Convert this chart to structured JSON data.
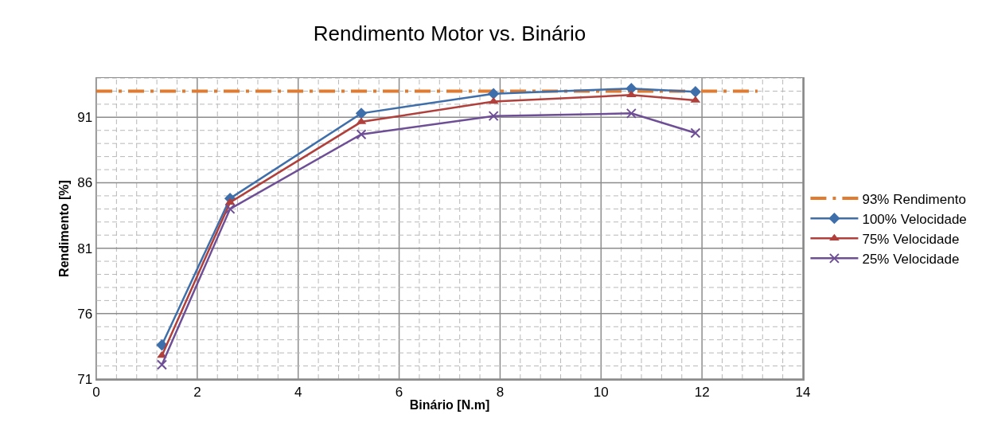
{
  "chart_data": {
    "type": "line",
    "title": "Rendimento Motor vs. Binário",
    "xlabel": "Binário [N.m]",
    "ylabel": "Rendimento [%]",
    "xlim": [
      0,
      14
    ],
    "ylim": [
      71,
      94
    ],
    "xticks": [
      0,
      {
        "value": 0.4,
        "label": null
      },
      {
        "value": 0.8,
        "label": null
      },
      {
        "value": 1.2,
        "label": null
      },
      {
        "value": 1.6,
        "label": null
      },
      2,
      {
        "value": 2.4,
        "label": null
      },
      {
        "value": 2.8,
        "label": null
      },
      {
        "value": 3.2,
        "label": null
      },
      {
        "value": 3.6,
        "label": null
      },
      4,
      {
        "value": 4.4,
        "label": null
      },
      {
        "value": 4.8,
        "label": null
      },
      {
        "value": 5.2,
        "label": null
      },
      {
        "value": 5.6,
        "label": null
      },
      6,
      {
        "value": 6.4,
        "label": null
      },
      {
        "value": 6.8,
        "label": null
      },
      {
        "value": 7.2,
        "label": null
      },
      {
        "value": 7.6,
        "label": null
      },
      8,
      {
        "value": 8.4,
        "label": null
      },
      {
        "value": 8.8,
        "label": null
      },
      {
        "value": 9.2,
        "label": null
      },
      {
        "value": 9.6,
        "label": null
      },
      10,
      {
        "value": 10.4,
        "label": null
      },
      {
        "value": 10.8,
        "label": null
      },
      {
        "value": 11.2,
        "label": null
      },
      {
        "value": 11.6,
        "label": null
      },
      12,
      {
        "value": 12.4,
        "label": null
      },
      {
        "value": 12.8,
        "label": null
      },
      {
        "value": 13.2,
        "label": null
      },
      {
        "value": 13.6,
        "label": null
      },
      14
    ],
    "yticks": [
      71,
      {
        "value": 72,
        "label": null
      },
      {
        "value": 73,
        "label": null
      },
      {
        "value": 74,
        "label": null
      },
      {
        "value": 75,
        "label": null
      },
      76,
      {
        "value": 77,
        "label": null
      },
      {
        "value": 78,
        "label": null
      },
      {
        "value": 79,
        "label": null
      },
      {
        "value": 80,
        "label": null
      },
      81,
      {
        "value": 82,
        "label": null
      },
      {
        "value": 83,
        "label": null
      },
      {
        "value": 84,
        "label": null
      },
      {
        "value": 85,
        "label": null
      },
      86,
      {
        "value": 87,
        "label": null
      },
      {
        "value": 88,
        "label": null
      },
      {
        "value": 89,
        "label": null
      },
      {
        "value": 90,
        "label": null
      },
      91,
      {
        "value": 92,
        "label": null
      },
      {
        "value": 93,
        "label": null
      },
      {
        "value": 94,
        "label": null
      }
    ],
    "grid": true,
    "legend": "right",
    "series": [
      {
        "name": "93% Rendimento",
        "color": "#e07b30",
        "x": [
          0,
          13.1
        ],
        "values": [
          93,
          93
        ],
        "marker": "none",
        "line_style": "dashed"
      },
      {
        "name": "100% Velocidade",
        "color": "#3f6faa",
        "x": [
          1.3,
          2.65,
          5.25,
          7.87,
          10.6,
          11.87
        ],
        "values": [
          73.6,
          84.8,
          91.3,
          92.8,
          93.2,
          92.95
        ],
        "marker": "diamond",
        "line_style": "solid"
      },
      {
        "name": "75% Velocidade",
        "color": "#b0403c",
        "x": [
          1.3,
          2.65,
          5.25,
          7.87,
          10.6,
          11.87
        ],
        "values": [
          72.8,
          84.5,
          90.65,
          92.2,
          92.7,
          92.3
        ],
        "marker": "triangle",
        "line_style": "solid"
      },
      {
        "name": "25% Velocidade",
        "color": "#6e4f96",
        "x": [
          1.3,
          2.65,
          5.25,
          7.87,
          10.6,
          11.87
        ],
        "values": [
          72.1,
          84.0,
          89.7,
          91.1,
          91.3,
          89.8
        ],
        "marker": "cross",
        "line_style": "solid"
      }
    ]
  }
}
